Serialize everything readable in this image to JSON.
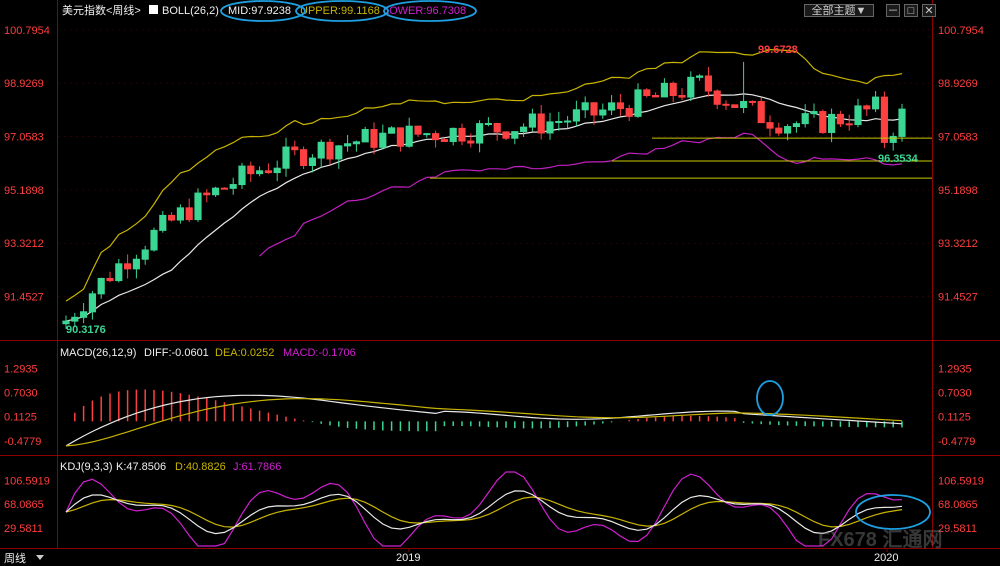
{
  "panel": {
    "title": "美元指数<周线>",
    "theme_label": "全部主题▼",
    "window_buttons": [
      "－",
      "□",
      "✕"
    ]
  },
  "colors": {
    "up": "#3cd694",
    "down": "#ff4040",
    "mid": "#e8e8e8",
    "upper": "#c8b400",
    "lower": "#c020c0",
    "axis_text": "#ff3d3d",
    "level_line": "#c8c800",
    "k_line": "#e8e8e8",
    "d_line": "#c8b400",
    "j_line": "#d020d0",
    "highlight": "#1e9fe0"
  },
  "price_panel": {
    "legend": {
      "boll": "BOLL(26,2)",
      "mid": "MID:97.9238",
      "upper": "UPPER:99.1168",
      "lower": "LOWER:96.7308"
    },
    "y_ticks": [
      "100.7954",
      "98.9269",
      "97.0583",
      "95.1898",
      "93.3212",
      "91.4527"
    ],
    "annotations": {
      "high": "99.6728",
      "low": "90.3176",
      "recent_low": "96.3534"
    },
    "levels": [
      97.0,
      96.2,
      95.6
    ]
  },
  "macd_panel": {
    "legend": {
      "title": "MACD(26,12,9)",
      "diff": "DIFF:-0.0601",
      "dea": "DEA:0.0252",
      "macd": "MACD:-0.1706"
    },
    "y_ticks": [
      "1.2935",
      "0.7030",
      "0.1125",
      "-0.4779"
    ]
  },
  "kdj_panel": {
    "legend": {
      "title": "KDJ(9,3,3)",
      "k": "K:47.8506",
      "d": "D:40.8826",
      "j": "J:61.7866"
    },
    "y_ticks": [
      "106.5919",
      "68.0865",
      "29.5811"
    ]
  },
  "x_axis": {
    "period_label": "周线",
    "labels": [
      "2019",
      "2020"
    ]
  },
  "watermark": "FX678 汇通网",
  "chart_data": {
    "type": "line",
    "title": "美元指数<周线>",
    "candles_high": 99.6728,
    "candles_low": 90.3176,
    "ylim": [
      90.0,
      101.0
    ],
    "boll": {
      "mid": 97.9238,
      "upper": 99.1168,
      "lower": 96.7308
    },
    "macd": {
      "diff": -0.0601,
      "dea": 0.0252,
      "macd": -0.1706
    },
    "kdj": {
      "k": 47.8506,
      "d": 40.8826,
      "j": 61.7866
    }
  }
}
